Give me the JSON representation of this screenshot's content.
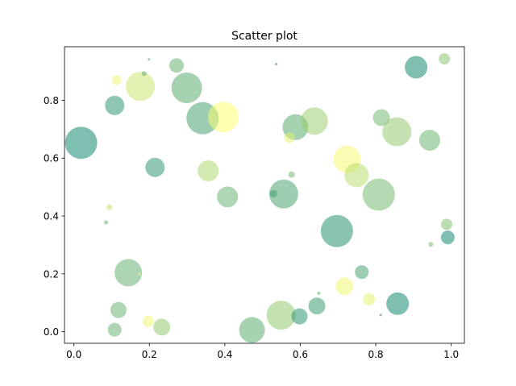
{
  "chart_data": {
    "type": "scatter",
    "title": "Scatter plot",
    "xlabel": "",
    "ylabel": "",
    "xlim": [
      -0.025,
      1.035
    ],
    "ylim": [
      -0.04,
      0.985
    ],
    "xticks": [
      0.0,
      0.2,
      0.4,
      0.6,
      0.8,
      1.0
    ],
    "xtick_labels": [
      "0.0",
      "0.2",
      "0.4",
      "0.6",
      "0.8",
      "1.0"
    ],
    "yticks": [
      0.0,
      0.2,
      0.4,
      0.6,
      0.8
    ],
    "ytick_labels": [
      "0.0",
      "0.2",
      "0.4",
      "0.6",
      "0.8"
    ],
    "grid": false,
    "legend": false,
    "colormap": "summer",
    "alpha": 0.5,
    "points": [
      {
        "x": 0.019,
        "y": 0.653,
        "r": 20,
        "color": "#008066"
      },
      {
        "x": 0.108,
        "y": 0.782,
        "r": 12,
        "color": "#1f8f66"
      },
      {
        "x": 0.113,
        "y": 0.87,
        "r": 6,
        "color": "#f0f866"
      },
      {
        "x": 0.176,
        "y": 0.848,
        "r": 18,
        "color": "#c8e466"
      },
      {
        "x": 0.186,
        "y": 0.892,
        "r": 3,
        "color": "#50a866"
      },
      {
        "x": 0.199,
        "y": 0.941,
        "r": 1.5,
        "color": "#3a9c66"
      },
      {
        "x": 0.272,
        "y": 0.92,
        "r": 9,
        "color": "#5aac66"
      },
      {
        "x": 0.299,
        "y": 0.843,
        "r": 19,
        "color": "#4ea666"
      },
      {
        "x": 0.341,
        "y": 0.738,
        "r": 20,
        "color": "#3a9c66"
      },
      {
        "x": 0.396,
        "y": 0.742,
        "r": 19,
        "color": "#ffff66"
      },
      {
        "x": 0.215,
        "y": 0.568,
        "r": 12,
        "color": "#1f8f66"
      },
      {
        "x": 0.356,
        "y": 0.556,
        "r": 13,
        "color": "#a8d466"
      },
      {
        "x": 0.407,
        "y": 0.466,
        "r": 13,
        "color": "#5cae66"
      },
      {
        "x": 0.094,
        "y": 0.43,
        "r": 3.5,
        "color": "#c0e066"
      },
      {
        "x": 0.085,
        "y": 0.378,
        "r": 2.5,
        "color": "#60b066"
      },
      {
        "x": 0.144,
        "y": 0.204,
        "r": 17,
        "color": "#5aac66"
      },
      {
        "x": 0.173,
        "y": 0.2,
        "r": 1.5,
        "color": "#ffff66"
      },
      {
        "x": 0.118,
        "y": 0.075,
        "r": 10,
        "color": "#5eae66"
      },
      {
        "x": 0.108,
        "y": 0.007,
        "r": 8.5,
        "color": "#5eae66"
      },
      {
        "x": 0.197,
        "y": 0.036,
        "r": 7,
        "color": "#f2f866"
      },
      {
        "x": 0.233,
        "y": 0.016,
        "r": 10.5,
        "color": "#8cc666"
      },
      {
        "x": 0.472,
        "y": 0.006,
        "r": 16,
        "color": "#4ea666"
      },
      {
        "x": 0.549,
        "y": 0.057,
        "r": 18,
        "color": "#8ac466"
      },
      {
        "x": 0.598,
        "y": 0.053,
        "r": 10,
        "color": "#1a8d66"
      },
      {
        "x": 0.644,
        "y": 0.089,
        "r": 10.5,
        "color": "#2a9466"
      },
      {
        "x": 0.649,
        "y": 0.133,
        "r": 2,
        "color": "#50a866"
      },
      {
        "x": 0.536,
        "y": 0.925,
        "r": 1.5,
        "color": "#008066"
      },
      {
        "x": 0.587,
        "y": 0.707,
        "r": 16,
        "color": "#4ea666"
      },
      {
        "x": 0.637,
        "y": 0.728,
        "r": 17,
        "color": "#98cc66"
      },
      {
        "x": 0.571,
        "y": 0.671,
        "r": 6.5,
        "color": "#e4f266"
      },
      {
        "x": 0.577,
        "y": 0.543,
        "r": 4,
        "color": "#6ab466"
      },
      {
        "x": 0.556,
        "y": 0.476,
        "r": 18,
        "color": "#3c9e66"
      },
      {
        "x": 0.529,
        "y": 0.477,
        "r": 4.5,
        "color": "#3a9c66"
      },
      {
        "x": 0.724,
        "y": 0.596,
        "r": 17,
        "color": "#f4fa66"
      },
      {
        "x": 0.749,
        "y": 0.541,
        "r": 15,
        "color": "#b4da66"
      },
      {
        "x": 0.697,
        "y": 0.348,
        "r": 20,
        "color": "#148966"
      },
      {
        "x": 0.808,
        "y": 0.474,
        "r": 20,
        "color": "#6cb666"
      },
      {
        "x": 0.815,
        "y": 0.74,
        "r": 10.5,
        "color": "#6ab466"
      },
      {
        "x": 0.856,
        "y": 0.691,
        "r": 18,
        "color": "#8ec666"
      },
      {
        "x": 0.907,
        "y": 0.914,
        "r": 14,
        "color": "#008066"
      },
      {
        "x": 0.982,
        "y": 0.943,
        "r": 7,
        "color": "#82c066"
      },
      {
        "x": 0.943,
        "y": 0.662,
        "r": 13,
        "color": "#60b066"
      },
      {
        "x": 0.988,
        "y": 0.371,
        "r": 7,
        "color": "#7abc66"
      },
      {
        "x": 0.991,
        "y": 0.326,
        "r": 8.5,
        "color": "#008066"
      },
      {
        "x": 0.946,
        "y": 0.302,
        "r": 3,
        "color": "#70b866"
      },
      {
        "x": 0.763,
        "y": 0.206,
        "r": 8.5,
        "color": "#3a9c66"
      },
      {
        "x": 0.717,
        "y": 0.157,
        "r": 11,
        "color": "#f2f866"
      },
      {
        "x": 0.782,
        "y": 0.112,
        "r": 7.5,
        "color": "#e6f266"
      },
      {
        "x": 0.858,
        "y": 0.097,
        "r": 14,
        "color": "#008066"
      },
      {
        "x": 0.813,
        "y": 0.058,
        "r": 1.5,
        "color": "#008066"
      }
    ]
  }
}
